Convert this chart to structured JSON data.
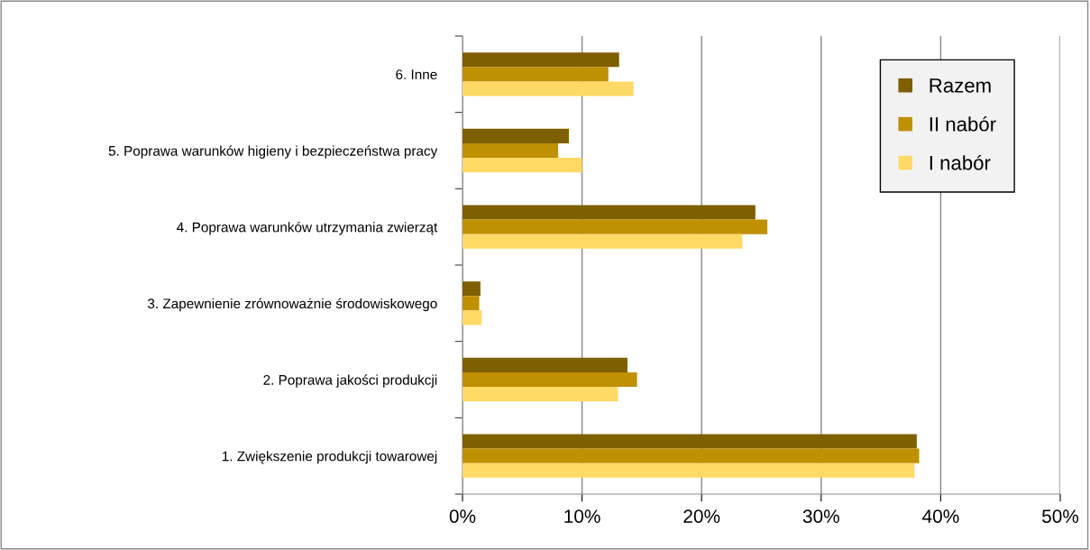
{
  "chart_data": {
    "type": "bar",
    "orientation": "horizontal",
    "categories": [
      "6. Inne",
      "5. Poprawa warunków higieny i bezpieczeństwa pracy",
      "4. Poprawa warunków utrzymania zwierząt",
      "3. Zapewnienie zrównoważnie środowiskowego",
      "2. Poprawa jakości produkcji",
      "1. Zwiększenie produkcji towarowej"
    ],
    "series": [
      {
        "name": "Razem",
        "color": "#7f6000",
        "values": [
          13.1,
          8.9,
          24.5,
          1.5,
          13.8,
          38.0
        ]
      },
      {
        "name": "II nabór",
        "color": "#bf9000",
        "values": [
          12.2,
          8.0,
          25.5,
          1.4,
          14.6,
          38.2
        ]
      },
      {
        "name": "I nabór",
        "color": "#ffd966",
        "values": [
          14.3,
          10.0,
          23.4,
          1.6,
          13.0,
          37.8
        ]
      }
    ],
    "xlim": [
      0,
      50
    ],
    "xticks": [
      {
        "value": 0,
        "label": "0%"
      },
      {
        "value": 10,
        "label": "10%"
      },
      {
        "value": 20,
        "label": "20%"
      },
      {
        "value": 30,
        "label": "30%"
      },
      {
        "value": 40,
        "label": "40%"
      },
      {
        "value": 50,
        "label": "50%"
      }
    ],
    "grid": "x",
    "legend": "top right"
  }
}
